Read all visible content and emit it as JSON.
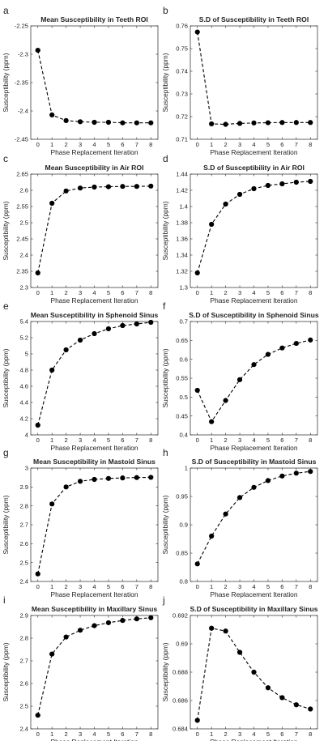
{
  "chart_data": [
    {
      "letter": "a",
      "type": "line",
      "title": "Mean Susceptibility in Teeth ROI",
      "xlabel": "Phase Replacement Iteration",
      "ylabel": "Susceptibility (ppm)",
      "xlim": [
        -0.5,
        8.5
      ],
      "xticks": [
        0,
        1,
        2,
        3,
        4,
        5,
        6,
        7,
        8
      ],
      "xtick_labels": [
        "0",
        "1",
        "2",
        "3",
        "4",
        "5",
        "6",
        "7",
        "8"
      ],
      "ylim": [
        -2.45,
        -2.25
      ],
      "yticks": [
        -2.45,
        -2.4,
        -2.35,
        -2.3,
        -2.25
      ],
      "ytick_labels": [
        "-2.45",
        "-2.4",
        "-2.35",
        "-2.3",
        "-2.25"
      ],
      "grid": false,
      "series": [
        {
          "x": [
            0,
            1,
            2,
            3,
            4,
            5,
            6,
            7,
            8
          ],
          "y": [
            -2.293,
            -2.407,
            -2.417,
            -2.419,
            -2.42,
            -2.42,
            -2.421,
            -2.421,
            -2.421
          ]
        }
      ]
    },
    {
      "letter": "b",
      "type": "line",
      "title": "S.D of Susceptibility in Teeth ROI",
      "xlabel": "Phase Replacement Iteration",
      "ylabel": "Susceptibility (ppm)",
      "xlim": [
        -0.5,
        8.5
      ],
      "xticks": [
        0,
        1,
        2,
        3,
        4,
        5,
        6,
        7,
        8
      ],
      "xtick_labels": [
        "0",
        "1",
        "2",
        "3",
        "4",
        "5",
        "6",
        "7",
        "8"
      ],
      "ylim": [
        0.71,
        0.76
      ],
      "yticks": [
        0.71,
        0.72,
        0.73,
        0.74,
        0.75,
        0.76
      ],
      "ytick_labels": [
        "0.71",
        "0.72",
        "0.73",
        "0.74",
        "0.75",
        "0.76"
      ],
      "grid": false,
      "series": [
        {
          "x": [
            0,
            1,
            2,
            3,
            4,
            5,
            6,
            7,
            8
          ],
          "y": [
            0.7573,
            0.7168,
            0.7166,
            0.717,
            0.7172,
            0.7173,
            0.7174,
            0.7174,
            0.7174
          ]
        }
      ]
    },
    {
      "letter": "c",
      "type": "line",
      "title": "Mean Susceptibility in Air ROI",
      "xlabel": "Phase Replacement Iteration",
      "ylabel": "Susceptibility (ppm)",
      "xlim": [
        -0.5,
        8.5
      ],
      "xticks": [
        0,
        1,
        2,
        3,
        4,
        5,
        6,
        7,
        8
      ],
      "xtick_labels": [
        "0",
        "1",
        "2",
        "3",
        "4",
        "5",
        "6",
        "7",
        "8"
      ],
      "ylim": [
        2.3,
        2.65
      ],
      "yticks": [
        2.3,
        2.35,
        2.4,
        2.45,
        2.5,
        2.55,
        2.6,
        2.65
      ],
      "ytick_labels": [
        "2.3",
        "2.35",
        "2.4",
        "2.45",
        "2.5",
        "2.55",
        "2.6",
        "2.65"
      ],
      "grid": false,
      "series": [
        {
          "x": [
            0,
            1,
            2,
            3,
            4,
            5,
            6,
            7,
            8
          ],
          "y": [
            2.345,
            2.56,
            2.598,
            2.607,
            2.61,
            2.611,
            2.612,
            2.612,
            2.613
          ]
        }
      ]
    },
    {
      "letter": "d",
      "type": "line",
      "title": "S.D of Susceptibility in Air ROI",
      "xlabel": "Phase Replacement Iteration",
      "ylabel": "Susceptibility (ppm)",
      "xlim": [
        -0.5,
        8.5
      ],
      "xticks": [
        0,
        1,
        2,
        3,
        4,
        5,
        6,
        7,
        8
      ],
      "xtick_labels": [
        "0",
        "1",
        "2",
        "3",
        "4",
        "5",
        "6",
        "7",
        "8"
      ],
      "ylim": [
        1.3,
        1.44
      ],
      "yticks": [
        1.3,
        1.32,
        1.34,
        1.36,
        1.38,
        1.4,
        1.42,
        1.44
      ],
      "ytick_labels": [
        "1.3",
        "1.32",
        "1.34",
        "1.36",
        "1.38",
        "1.4",
        "1.42",
        "1.44"
      ],
      "grid": false,
      "series": [
        {
          "x": [
            0,
            1,
            2,
            3,
            4,
            5,
            6,
            7,
            8
          ],
          "y": [
            1.318,
            1.378,
            1.403,
            1.415,
            1.422,
            1.426,
            1.428,
            1.43,
            1.431
          ]
        }
      ]
    },
    {
      "letter": "e",
      "type": "line",
      "title": "Mean Susceptibility in Sphenoid Sinus",
      "xlabel": "Phase Replacement Iteration",
      "ylabel": "Susceptibility (ppm)",
      "xlim": [
        -0.5,
        8.5
      ],
      "xticks": [
        0,
        1,
        2,
        3,
        4,
        5,
        6,
        7,
        8
      ],
      "xtick_labels": [
        "0",
        "1",
        "2",
        "3",
        "4",
        "5",
        "6",
        "7",
        "8"
      ],
      "ylim": [
        4,
        5.4
      ],
      "yticks": [
        4,
        4.2,
        4.4,
        4.6,
        4.8,
        5,
        5.2,
        5.4
      ],
      "ytick_labels": [
        "4",
        "4.2",
        "4.4",
        "4.6",
        "4.8",
        "5",
        "5.2",
        "5.4"
      ],
      "grid": false,
      "series": [
        {
          "x": [
            0,
            1,
            2,
            3,
            4,
            5,
            6,
            7,
            8
          ],
          "y": [
            4.12,
            4.8,
            5.05,
            5.17,
            5.25,
            5.31,
            5.35,
            5.37,
            5.39
          ]
        }
      ]
    },
    {
      "letter": "f",
      "type": "line",
      "title": "S.D of Susceptibility in Sphenoid Sinus",
      "xlabel": "Phase Replacement Iteration",
      "ylabel": "Susceptibility (ppm)",
      "xlim": [
        -0.5,
        8.5
      ],
      "xticks": [
        0,
        1,
        2,
        3,
        4,
        5,
        6,
        7,
        8
      ],
      "xtick_labels": [
        "0",
        "1",
        "2",
        "3",
        "4",
        "5",
        "6",
        "7",
        "8"
      ],
      "ylim": [
        0.4,
        0.7
      ],
      "yticks": [
        0.4,
        0.45,
        0.5,
        0.55,
        0.6,
        0.65,
        0.7
      ],
      "ytick_labels": [
        "0.4",
        "0.45",
        "0.5",
        "0.55",
        "0.6",
        "0.65",
        "0.7"
      ],
      "grid": false,
      "series": [
        {
          "x": [
            0,
            1,
            2,
            3,
            4,
            5,
            6,
            7,
            8
          ],
          "y": [
            0.518,
            0.435,
            0.491,
            0.546,
            0.586,
            0.613,
            0.63,
            0.642,
            0.651
          ]
        }
      ]
    },
    {
      "letter": "g",
      "type": "line",
      "title": "Mean Susceptibility in Mastoid Sinus",
      "xlabel": "Phase Replacement Iteration",
      "ylabel": "Susceptibility (ppm)",
      "xlim": [
        -0.5,
        8.5
      ],
      "xticks": [
        0,
        1,
        2,
        3,
        4,
        5,
        6,
        7,
        8
      ],
      "xtick_labels": [
        "0",
        "1",
        "2",
        "3",
        "4",
        "5",
        "6",
        "7",
        "8"
      ],
      "ylim": [
        2.4,
        3
      ],
      "yticks": [
        2.4,
        2.5,
        2.6,
        2.7,
        2.8,
        2.9,
        3
      ],
      "ytick_labels": [
        "2.4",
        "2.5",
        "2.6",
        "2.7",
        "2.8",
        "2.9",
        "3"
      ],
      "grid": false,
      "series": [
        {
          "x": [
            0,
            1,
            2,
            3,
            4,
            5,
            6,
            7,
            8
          ],
          "y": [
            2.44,
            2.81,
            2.9,
            2.93,
            2.94,
            2.945,
            2.948,
            2.95,
            2.951
          ]
        }
      ]
    },
    {
      "letter": "h",
      "type": "line",
      "title": "S.D of Susceptibility in Mastoid Sinus",
      "xlabel": "Phase Replacement Iteration",
      "ylabel": "Susceptibility (ppm)",
      "xlim": [
        -0.5,
        8.5
      ],
      "xticks": [
        0,
        1,
        2,
        3,
        4,
        5,
        6,
        7,
        8
      ],
      "xtick_labels": [
        "0",
        "1",
        "2",
        "3",
        "4",
        "5",
        "6",
        "7",
        "8"
      ],
      "ylim": [
        0.8,
        1
      ],
      "yticks": [
        0.8,
        0.85,
        0.9,
        0.95,
        1
      ],
      "ytick_labels": [
        "0.8",
        "0.85",
        "0.9",
        "0.95",
        "1"
      ],
      "grid": false,
      "series": [
        {
          "x": [
            0,
            1,
            2,
            3,
            4,
            5,
            6,
            7,
            8
          ],
          "y": [
            0.831,
            0.88,
            0.919,
            0.948,
            0.966,
            0.978,
            0.986,
            0.991,
            0.994
          ]
        }
      ]
    },
    {
      "letter": "i",
      "type": "line",
      "title": "Mean Susceptibility in Maxillary Sinus",
      "xlabel": "Phase Replacement Iteration",
      "ylabel": "Susceptibility (ppm)",
      "xlim": [
        -0.5,
        8.5
      ],
      "xticks": [
        0,
        1,
        2,
        3,
        4,
        5,
        6,
        7,
        8
      ],
      "xtick_labels": [
        "0",
        "1",
        "2",
        "3",
        "4",
        "5",
        "6",
        "7",
        "8"
      ],
      "ylim": [
        2.4,
        2.9
      ],
      "yticks": [
        2.4,
        2.5,
        2.6,
        2.7,
        2.8,
        2.9
      ],
      "ytick_labels": [
        "2.4",
        "2.5",
        "2.6",
        "2.7",
        "2.8",
        "2.9"
      ],
      "grid": false,
      "series": [
        {
          "x": [
            0,
            1,
            2,
            3,
            4,
            5,
            6,
            7,
            8
          ],
          "y": [
            2.46,
            2.73,
            2.805,
            2.835,
            2.855,
            2.868,
            2.878,
            2.885,
            2.89
          ]
        }
      ]
    },
    {
      "letter": "j",
      "type": "line",
      "title": "S.D of Susceptibility in Maxillary Sinus",
      "xlabel": "Phase Replacement Iteration",
      "ylabel": "Susceptibility (ppm)",
      "xlim": [
        -0.5,
        8.5
      ],
      "xticks": [
        0,
        1,
        2,
        3,
        4,
        5,
        6,
        7,
        8
      ],
      "xtick_labels": [
        "0",
        "1",
        "2",
        "3",
        "4",
        "5",
        "6",
        "7",
        "8"
      ],
      "ylim": [
        0.684,
        0.692
      ],
      "yticks": [
        0.684,
        0.686,
        0.688,
        0.69,
        0.692
      ],
      "ytick_labels": [
        "0.684",
        "0.686",
        "0.688",
        "0.69",
        "0.692"
      ],
      "grid": false,
      "series": [
        {
          "x": [
            0,
            1,
            2,
            3,
            4,
            5,
            6,
            7,
            8
          ],
          "y": [
            0.6846,
            0.6911,
            0.6909,
            0.6894,
            0.688,
            0.6869,
            0.6862,
            0.6857,
            0.6854
          ]
        }
      ]
    }
  ]
}
